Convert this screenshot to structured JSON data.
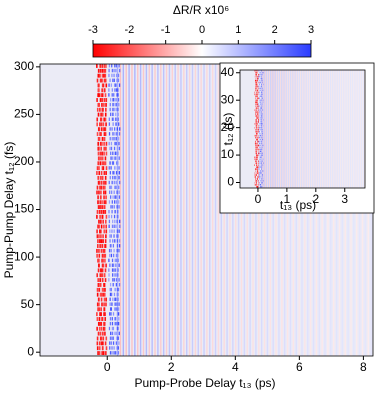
{
  "chart_data": [
    {
      "type": "heatmap",
      "colorbar_label": "ΔR/R x10⁶",
      "colorbar_lim": [
        -3,
        3
      ],
      "colorbar_ticks": [
        -3,
        -2,
        -1,
        0,
        1,
        2,
        3
      ],
      "colors": [
        "#ff0000",
        "#ffffff",
        "#2a3cff"
      ],
      "xlabel": "Pump-Probe Delay t₁₃ (ps)",
      "ylabel": "Pump-Pump Delay t₁₂ (fs)",
      "xlim": [
        -2.1,
        8.3
      ],
      "xticks": [
        0,
        2,
        4,
        6,
        8
      ],
      "ylim": [
        -4,
        303
      ],
      "yticks": [
        0,
        50,
        100,
        150,
        200,
        250,
        300
      ]
    },
    {
      "type": "heatmap",
      "xlabel": "t₁₃ (ps)",
      "ylabel": "t₁₂ (fs)",
      "xlim": [
        -0.62,
        3.7
      ],
      "xticks": [
        0,
        1,
        2,
        3
      ],
      "ylim": [
        -2,
        41
      ],
      "yticks": [
        0,
        10,
        20,
        30,
        40
      ]
    }
  ]
}
